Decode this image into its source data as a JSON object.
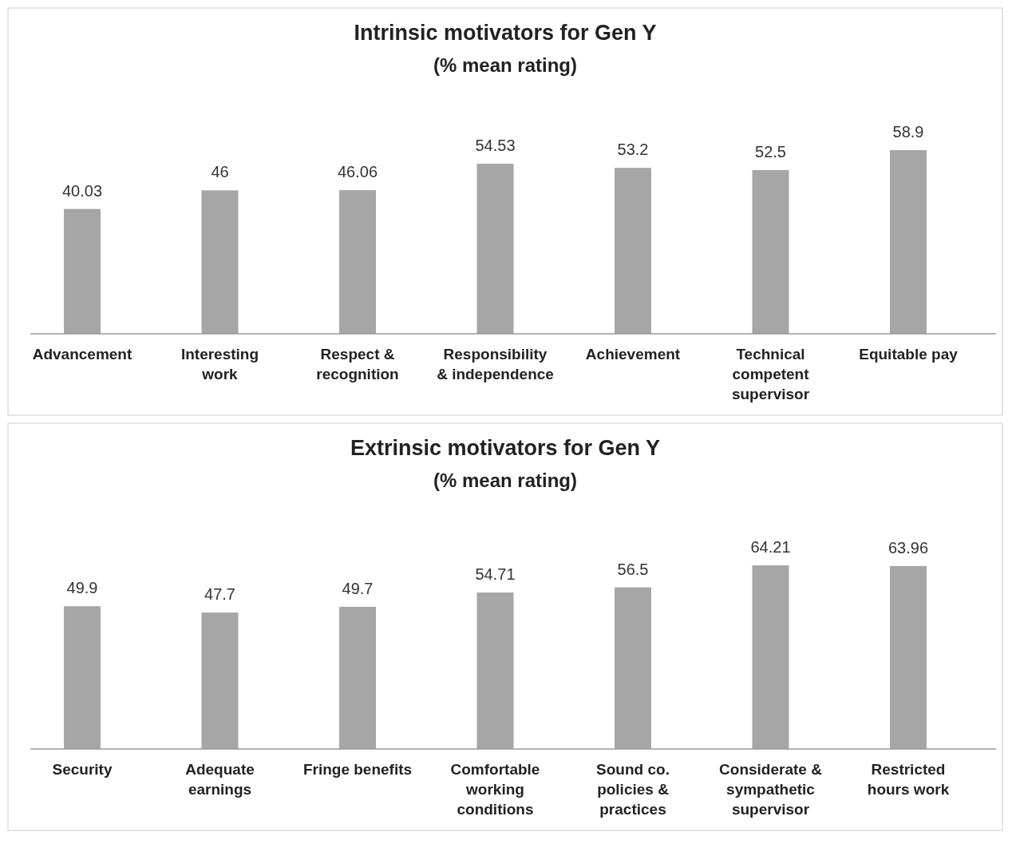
{
  "chart_data": [
    {
      "type": "bar",
      "title": "Intrinsic motivators for Gen Y",
      "subtitle": "(% mean rating)",
      "categories": [
        "Advancement",
        "Interesting work",
        "Respect & recognition",
        "Responsibility & independence",
        "Achievement",
        "Technical competent supervisor",
        "Equitable pay"
      ],
      "values": [
        40.03,
        46,
        46.06,
        54.53,
        53.2,
        52.5,
        58.9
      ],
      "color": "#a6a6a6",
      "data_labels": true
    },
    {
      "type": "bar",
      "title": "Extrinsic motivators for Gen Y",
      "subtitle": "(% mean rating)",
      "categories": [
        "Security",
        "Adequate earnings",
        "Fringe benefits",
        "Comfortable working conditions",
        "Sound co. policies & practices",
        "Considerate & sympathetic supervisor",
        "Restricted hours work"
      ],
      "values": [
        49.9,
        47.7,
        49.7,
        54.71,
        56.5,
        64.21,
        63.96
      ],
      "color": "#a6a6a6",
      "data_labels": true
    }
  ]
}
